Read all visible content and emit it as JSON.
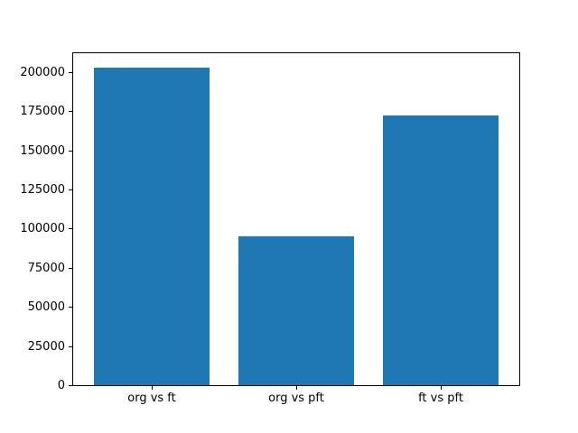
{
  "figure": {
    "background": "#ffffff"
  },
  "chart_data": {
    "type": "bar",
    "categories": [
      "org vs ft",
      "org vs pft",
      "ft vs pft"
    ],
    "values": [
      203000,
      95000,
      172000
    ],
    "title": "",
    "xlabel": "",
    "ylabel": "",
    "ylim": [
      0,
      212000
    ],
    "yticks": [
      0,
      25000,
      50000,
      75000,
      100000,
      125000,
      150000,
      175000,
      200000
    ],
    "bar_color": "#1f77b4",
    "axis_color": "#000000",
    "text_color": "#000000",
    "grid": false,
    "legend": null
  }
}
